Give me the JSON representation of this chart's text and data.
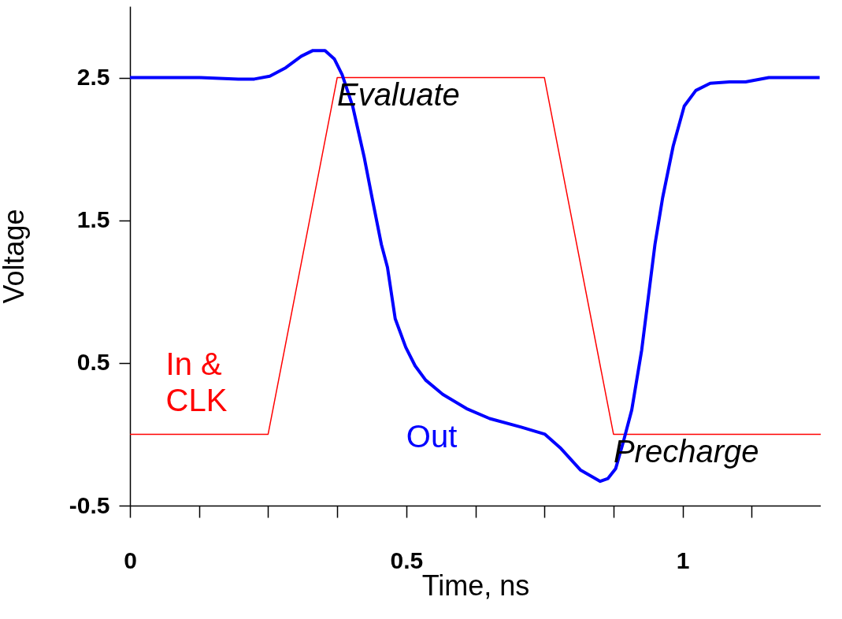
{
  "chart_data": {
    "type": "line",
    "xlabel": "Time, ns",
    "ylabel": "Voltage",
    "xlim": [
      0,
      1.25
    ],
    "ylim": [
      -0.5,
      3
    ],
    "xticks": [
      0,
      {
        "value": 0.125,
        "label": null
      },
      {
        "value": 0.25,
        "label": null
      },
      {
        "value": 0.375,
        "label": null
      },
      0.5,
      {
        "value": 0.625,
        "label": null
      },
      {
        "value": 0.75,
        "label": null
      },
      {
        "value": 0.875,
        "label": null
      },
      1,
      {
        "value": 1.125,
        "label": null
      }
    ],
    "yticks": [
      -0.5,
      0.5,
      1.5,
      2.5
    ],
    "grid": false,
    "legend": false,
    "marker": "none",
    "line_style": "solid",
    "series": [
      {
        "name": "In & CLK",
        "color": "#ff0000",
        "x": [
          0,
          0.25,
          0.375,
          0.75,
          0.875,
          1.25
        ],
        "values": [
          0,
          0,
          2.5,
          2.5,
          0,
          0
        ]
      },
      {
        "name": "Out",
        "color": "#0000ff",
        "x": [
          0,
          0.127,
          0.196,
          0.225,
          0.253,
          0.282,
          0.31,
          0.331,
          0.353,
          0.37,
          0.384,
          0.403,
          0.424,
          0.438,
          0.455,
          0.466,
          0.48,
          0.499,
          0.516,
          0.535,
          0.566,
          0.609,
          0.651,
          0.708,
          0.751,
          0.78,
          0.815,
          0.851,
          0.865,
          0.879,
          0.893,
          0.908,
          0.926,
          0.95,
          0.964,
          0.983,
          1.003,
          1.024,
          1.05,
          1.085,
          1.114,
          1.156,
          1.248
        ],
        "values": [
          2.5,
          2.5,
          2.49,
          2.49,
          2.51,
          2.57,
          2.65,
          2.69,
          2.69,
          2.63,
          2.52,
          2.3,
          1.94,
          1.66,
          1.33,
          1.17,
          0.81,
          0.61,
          0.48,
          0.38,
          0.28,
          0.18,
          0.11,
          0.05,
          0,
          -0.1,
          -0.25,
          -0.33,
          -0.31,
          -0.24,
          -0.05,
          0.17,
          0.59,
          1.33,
          1.66,
          2.02,
          2.3,
          2.41,
          2.46,
          2.47,
          2.47,
          2.5,
          2.5
        ]
      }
    ],
    "annotations": [
      "Evaluate",
      "Precharge"
    ]
  }
}
